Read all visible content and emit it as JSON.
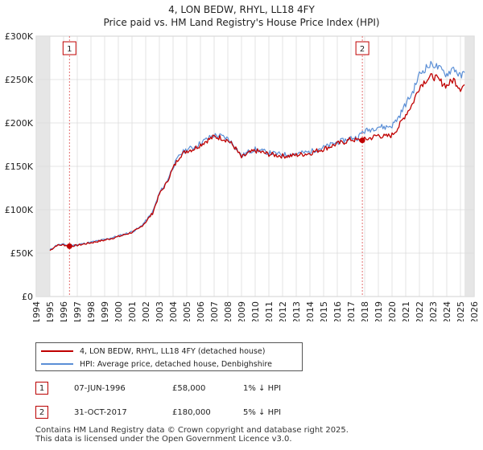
{
  "chart_data": {
    "type": "line",
    "title": "4, LON BEDW, RHYL, LL18 4FY",
    "subtitle": "Price paid vs. HM Land Registry's House Price Index (HPI)",
    "xlabel": "",
    "ylabel": "",
    "xlim": [
      1994.0,
      2026.0
    ],
    "ylim": [
      0,
      300000
    ],
    "x_ticks": [
      "1994",
      "1995",
      "1996",
      "1997",
      "1998",
      "1999",
      "2000",
      "2001",
      "2002",
      "2003",
      "2004",
      "2005",
      "2006",
      "2007",
      "2008",
      "2009",
      "2010",
      "2011",
      "2012",
      "2013",
      "2014",
      "2015",
      "2016",
      "2017",
      "2018",
      "2019",
      "2020",
      "2021",
      "2022",
      "2023",
      "2024",
      "2025",
      "2026"
    ],
    "y_ticks": [
      {
        "value": 0,
        "label": "£0"
      },
      {
        "value": 50000,
        "label": "£50K"
      },
      {
        "value": 100000,
        "label": "£100K"
      },
      {
        "value": 150000,
        "label": "£150K"
      },
      {
        "value": 200000,
        "label": "£200K"
      },
      {
        "value": 250000,
        "label": "£250K"
      },
      {
        "value": 300000,
        "label": "£300K"
      }
    ],
    "grid": true,
    "data_start": 1995.0,
    "data_end": 2025.3,
    "series": [
      {
        "name": "4, LON BEDW, RHYL, LL18 4FY (detached house)",
        "color": "#c00000",
        "points": [
          [
            1995.0,
            53000
          ],
          [
            1995.5,
            59000
          ],
          [
            1996.0,
            59500
          ],
          [
            1996.43,
            58000
          ],
          [
            1997.0,
            59000
          ],
          [
            1998.0,
            62000
          ],
          [
            1999.0,
            65000
          ],
          [
            2000.0,
            69000
          ],
          [
            2001.0,
            74000
          ],
          [
            2001.5,
            78000
          ],
          [
            2002.0,
            86000
          ],
          [
            2002.5,
            96000
          ],
          [
            2003.0,
            118000
          ],
          [
            2003.5,
            130000
          ],
          [
            2004.0,
            148000
          ],
          [
            2004.5,
            162000
          ],
          [
            2005.0,
            168000
          ],
          [
            2005.5,
            170000
          ],
          [
            2006.0,
            175000
          ],
          [
            2006.5,
            180000
          ],
          [
            2007.0,
            184000
          ],
          [
            2007.5,
            183000
          ],
          [
            2008.0,
            180000
          ],
          [
            2008.5,
            172000
          ],
          [
            2009.0,
            160000
          ],
          [
            2009.5,
            165000
          ],
          [
            2010.0,
            168000
          ],
          [
            2010.5,
            166000
          ],
          [
            2011.0,
            164000
          ],
          [
            2011.5,
            163000
          ],
          [
            2012.0,
            162000
          ],
          [
            2012.5,
            162000
          ],
          [
            2013.0,
            163000
          ],
          [
            2013.5,
            164000
          ],
          [
            2014.0,
            165000
          ],
          [
            2014.5,
            168000
          ],
          [
            2015.0,
            170000
          ],
          [
            2015.5,
            173000
          ],
          [
            2016.0,
            176000
          ],
          [
            2016.5,
            178000
          ],
          [
            2017.0,
            181000
          ],
          [
            2017.5,
            180000
          ],
          [
            2017.83,
            180000
          ],
          [
            2018.5,
            183000
          ],
          [
            2019.0,
            186000
          ],
          [
            2019.5,
            184000
          ],
          [
            2020.0,
            186000
          ],
          [
            2020.5,
            196000
          ],
          [
            2021.0,
            210000
          ],
          [
            2021.5,
            222000
          ],
          [
            2022.0,
            242000
          ],
          [
            2022.5,
            250000
          ],
          [
            2023.0,
            254000
          ],
          [
            2023.5,
            248000
          ],
          [
            2024.0,
            243000
          ],
          [
            2024.5,
            250000
          ],
          [
            2025.0,
            240000
          ],
          [
            2025.3,
            244000
          ]
        ]
      },
      {
        "name": "HPI: Average price, detached house, Denbighshire",
        "color": "#5b8fd6",
        "points": [
          [
            1995.0,
            53500
          ],
          [
            1995.5,
            59500
          ],
          [
            1996.0,
            60000
          ],
          [
            1996.43,
            58600
          ],
          [
            1997.0,
            59600
          ],
          [
            1998.0,
            62600
          ],
          [
            1999.0,
            65700
          ],
          [
            2000.0,
            69700
          ],
          [
            2001.0,
            74700
          ],
          [
            2001.5,
            78800
          ],
          [
            2002.0,
            86900
          ],
          [
            2002.5,
            97000
          ],
          [
            2003.0,
            119200
          ],
          [
            2003.5,
            131300
          ],
          [
            2004.0,
            149500
          ],
          [
            2004.5,
            163600
          ],
          [
            2005.0,
            169700
          ],
          [
            2005.5,
            171700
          ],
          [
            2006.0,
            176800
          ],
          [
            2006.5,
            181800
          ],
          [
            2007.0,
            185800
          ],
          [
            2007.5,
            184800
          ],
          [
            2008.0,
            181800
          ],
          [
            2008.5,
            173700
          ],
          [
            2009.0,
            161600
          ],
          [
            2009.5,
            166700
          ],
          [
            2010.0,
            169700
          ],
          [
            2010.5,
            167700
          ],
          [
            2011.0,
            165600
          ],
          [
            2011.5,
            164600
          ],
          [
            2012.0,
            163600
          ],
          [
            2012.5,
            163600
          ],
          [
            2013.0,
            164600
          ],
          [
            2013.5,
            165600
          ],
          [
            2014.0,
            166700
          ],
          [
            2014.5,
            169700
          ],
          [
            2015.0,
            171700
          ],
          [
            2015.5,
            174700
          ],
          [
            2016.0,
            177800
          ],
          [
            2016.5,
            179800
          ],
          [
            2017.0,
            182800
          ],
          [
            2017.5,
            183000
          ],
          [
            2017.83,
            189500
          ],
          [
            2018.5,
            193000
          ],
          [
            2019.0,
            196000
          ],
          [
            2019.5,
            195000
          ],
          [
            2020.0,
            197000
          ],
          [
            2020.5,
            207000
          ],
          [
            2021.0,
            222000
          ],
          [
            2021.5,
            235000
          ],
          [
            2022.0,
            256000
          ],
          [
            2022.5,
            264000
          ],
          [
            2023.0,
            268000
          ],
          [
            2023.5,
            262000
          ],
          [
            2024.0,
            256000
          ],
          [
            2024.5,
            264000
          ],
          [
            2025.0,
            253000
          ],
          [
            2025.3,
            258000
          ]
        ]
      }
    ],
    "sales": [
      {
        "id": "1",
        "x": 1996.43,
        "price": 58000,
        "date": "07-JUN-1996",
        "price_label": "£58,000",
        "hpi_label": "1% ↓ HPI"
      },
      {
        "id": "2",
        "x": 2017.83,
        "price": 180000,
        "date": "31-OCT-2017",
        "price_label": "£180,000",
        "hpi_label": "5% ↓ HPI"
      }
    ]
  },
  "legend": {
    "items": [
      {
        "label": "4, LON BEDW, RHYL, LL18 4FY (detached house)",
        "color": "#c00000"
      },
      {
        "label": "HPI: Average price, detached house, Denbighshire",
        "color": "#5b8fd6"
      }
    ]
  },
  "footer": {
    "line1": "Contains HM Land Registry data © Crown copyright and database right 2025.",
    "line2": "This data is licensed under the Open Government Licence v3.0."
  }
}
